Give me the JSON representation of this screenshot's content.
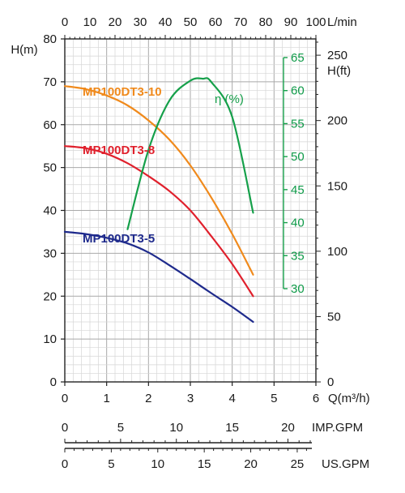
{
  "chart_data": {
    "type": "line",
    "axes": {
      "flow_m3h": {
        "label": "Q(m³/h)",
        "range": [
          0,
          6
        ],
        "ticks": [
          "0",
          "1",
          "2",
          "3",
          "4",
          "5",
          "6"
        ]
      },
      "flow_lmin": {
        "label": "L/min",
        "range": [
          0,
          100
        ],
        "ticks": [
          "0",
          "10",
          "20",
          "30",
          "40",
          "50",
          "60",
          "70",
          "80",
          "90",
          "100"
        ]
      },
      "flow_impgpm": {
        "label": "IMP.GPM",
        "ticks": [
          "0",
          "5",
          "10",
          "15",
          "20"
        ],
        "tick_values": [
          0,
          5,
          10,
          15,
          20
        ]
      },
      "flow_usgpm": {
        "label": "US.GPM",
        "ticks": [
          "0",
          "5",
          "10",
          "15",
          "20",
          "25"
        ],
        "tick_values": [
          0,
          5,
          10,
          15,
          20,
          25
        ]
      },
      "head_m": {
        "label": "H(m)",
        "range": [
          0,
          80
        ],
        "ticks": [
          "0",
          "10",
          "20",
          "30",
          "40",
          "50",
          "60",
          "70",
          "80"
        ]
      },
      "head_ft": {
        "label": "H(ft)",
        "ticks": [
          "0",
          "50",
          "100",
          "150",
          "200",
          "250"
        ],
        "tick_values": [
          0,
          50,
          100,
          150,
          200,
          250
        ]
      },
      "efficiency": {
        "label": "η (%)",
        "range": [
          30,
          65
        ],
        "ticks": [
          "30",
          "35",
          "40",
          "45",
          "50",
          "55",
          "60",
          "65"
        ]
      }
    },
    "grid": true,
    "series": [
      {
        "name": "MP100DT3-10",
        "color": "#f08a1c",
        "x": [
          0,
          0.5,
          1.0,
          1.5,
          2.0,
          2.5,
          3.0,
          3.5,
          4.0,
          4.5
        ],
        "y": [
          69,
          68.3,
          66.8,
          64.5,
          61.0,
          56.5,
          50.5,
          43.0,
          34.5,
          25.0
        ]
      },
      {
        "name": "MP100DT3-8",
        "color": "#e0202c",
        "x": [
          0,
          0.5,
          1.0,
          1.5,
          2.0,
          2.5,
          3.0,
          3.5,
          4.0,
          4.5
        ],
        "y": [
          55,
          54.5,
          53.2,
          51.0,
          48.0,
          44.5,
          40.0,
          34.0,
          27.5,
          20.0
        ]
      },
      {
        "name": "MP100DT3-5",
        "color": "#1e2a8c",
        "x": [
          0,
          0.5,
          1.0,
          1.5,
          2.0,
          2.5,
          3.0,
          3.5,
          4.0,
          4.5
        ],
        "y": [
          35,
          34.5,
          33.6,
          32.3,
          30.2,
          27.2,
          24.0,
          20.7,
          17.5,
          14.0
        ]
      },
      {
        "name": "η (%)",
        "axis": "efficiency",
        "color": "#15a04a",
        "x": [
          1.5,
          2.0,
          2.5,
          3.0,
          3.3,
          3.5,
          4.0,
          4.5
        ],
        "y": [
          39.0,
          51.0,
          58.5,
          61.5,
          61.8,
          61.3,
          56.0,
          41.5
        ]
      }
    ]
  }
}
